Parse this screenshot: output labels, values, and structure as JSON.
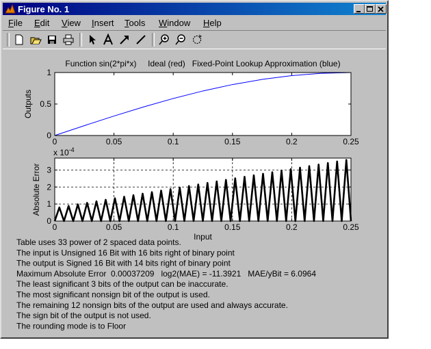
{
  "window": {
    "title": "Figure No. 1"
  },
  "menu": [
    "File",
    "Edit",
    "View",
    "Insert",
    "Tools",
    "Window",
    "Help"
  ],
  "chart_data": [
    {
      "type": "line",
      "title": "Function sin(2*pi*x)     Ideal (red)   Fixed-Point Lookup Approximation (blue)",
      "ylabel": "Outputs",
      "x": [
        0,
        0.025,
        0.05,
        0.075,
        0.1,
        0.125,
        0.15,
        0.175,
        0.2,
        0.225,
        0.25
      ],
      "values": [
        0,
        0.1564,
        0.309,
        0.454,
        0.5878,
        0.7071,
        0.809,
        0.891,
        0.9511,
        0.9877,
        1
      ],
      "color": "#0000ff",
      "xlim": [
        0,
        0.25
      ],
      "ylim": [
        0,
        1
      ],
      "xticks": [
        0,
        0.05,
        0.1,
        0.15,
        0.2,
        0.25
      ],
      "yticks": [
        0,
        0.5,
        1
      ],
      "grid": false
    },
    {
      "type": "line",
      "ylabel": "Absolute Error",
      "xlabel": "Input",
      "y_multiplier": {
        "base": "x 10",
        "exponent": "-4"
      },
      "x": [
        0,
        0.0039,
        0.0078,
        0.0117,
        0.0156,
        0.0195,
        0.0234,
        0.0273,
        0.0313,
        0.0352,
        0.0391,
        0.043,
        0.0469,
        0.0508,
        0.0547,
        0.0586,
        0.0625,
        0.0664,
        0.0703,
        0.0742,
        0.0781,
        0.082,
        0.0859,
        0.0898,
        0.0938,
        0.0977,
        0.1016,
        0.1055,
        0.1094,
        0.1133,
        0.1172,
        0.1211,
        0.125,
        0.1289,
        0.1328,
        0.1367,
        0.1406,
        0.1445,
        0.1484,
        0.1523,
        0.1563,
        0.1602,
        0.1641,
        0.168,
        0.1719,
        0.1758,
        0.1797,
        0.1836,
        0.1875,
        0.1914,
        0.1953,
        0.1992,
        0.2031,
        0.207,
        0.2109,
        0.2148,
        0.2188,
        0.2227,
        0.2266,
        0.2305,
        0.2344,
        0.2383,
        0.2422,
        0.2461,
        0.25
      ],
      "values": [
        0,
        0.8,
        0,
        0.89,
        0,
        0.98,
        0,
        1.07,
        0,
        1.16,
        0,
        1.25,
        0,
        1.34,
        0,
        1.43,
        0,
        1.52,
        0,
        1.61,
        0,
        1.7,
        0,
        1.79,
        0,
        1.88,
        0,
        1.97,
        0,
        2.06,
        0,
        2.15,
        0,
        2.24,
        0,
        2.33,
        0,
        2.42,
        0,
        2.51,
        0,
        2.6,
        0,
        2.69,
        0,
        2.78,
        0,
        2.87,
        0,
        2.96,
        0,
        3.05,
        0,
        3.14,
        0,
        3.23,
        0,
        3.32,
        0,
        3.41,
        0,
        3.5,
        0,
        3.59,
        0
      ],
      "color": "#000000",
      "xlim": [
        0,
        0.25
      ],
      "ylim": [
        0,
        3.7
      ],
      "xticks": [
        0,
        0.05,
        0.1,
        0.15,
        0.2,
        0.25
      ],
      "yticks": [
        0,
        1,
        2,
        3
      ],
      "grid": true
    }
  ],
  "notes": [
    "Table uses 33 power of 2 spaced data points.",
    "The input is Unsigned 16 Bit with 16 bits right of binary point",
    "The output is Signed 16 Bit with 14 bits right of binary point",
    "Maximum Absolute Error  0.00037209   log2(MAE) = -11.3921   MAE/yBit = 6.0964",
    "The least significant 3 bits of the output can be inaccurate.",
    "The most significant nonsign bit of the output is used.",
    "The remaining 12 nonsign bits of the output are used and always accurate.",
    "The sign bit of the output is not used.",
    "The rounding mode is to Floor"
  ]
}
